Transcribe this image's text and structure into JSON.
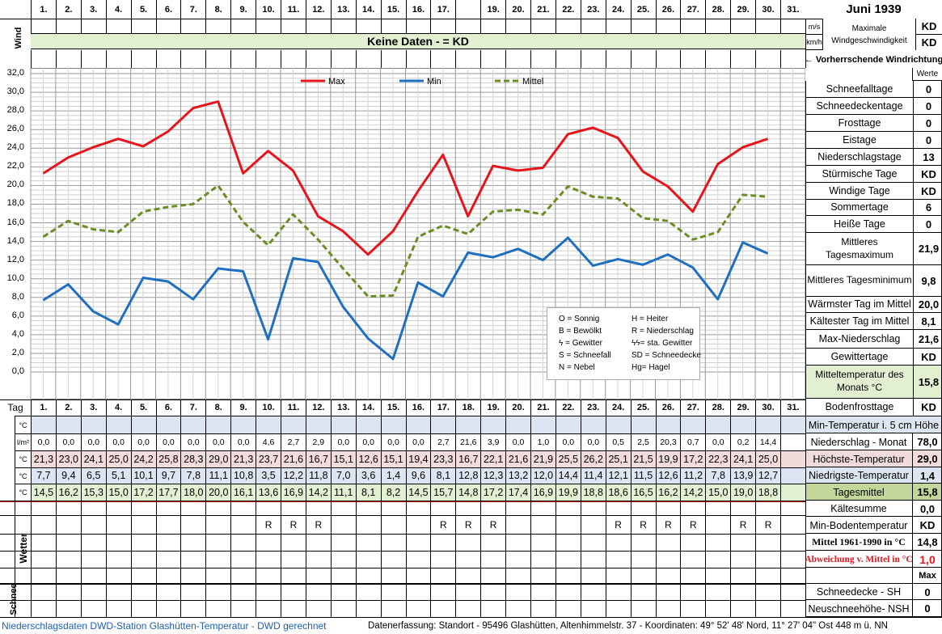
{
  "header": {
    "title": "Juni 1939",
    "wind_label": "Wind",
    "unit_ms": "m/s",
    "unit_kmh": "km/h",
    "max_wind_label": "Maximale Windgeschwindigkeit",
    "max_wind_ms": "KD",
    "max_wind_kmh": "KD",
    "no_data_banner": "Keine Daten -  = KD",
    "direction_label": "← Vorherrschende Windrichtung",
    "werte_label": "Werte"
  },
  "days": [
    "1.",
    "2.",
    "3.",
    "4.",
    "5.",
    "6.",
    "7.",
    "8.",
    "9.",
    "10.",
    "11.",
    "12.",
    "13.",
    "14.",
    "15.",
    "16.",
    "17.",
    "",
    "19.",
    "20.",
    "21.",
    "22.",
    "23.",
    "24.",
    "25.",
    "26.",
    "27.",
    "28.",
    "29.",
    "30.",
    "31."
  ],
  "days_bottom": [
    "1.",
    "2.",
    "3.",
    "4.",
    "5.",
    "6.",
    "7.",
    "8.",
    "9.",
    "10.",
    "11.",
    "12.",
    "13.",
    "14.",
    "15.",
    "16.",
    "17.",
    "18.",
    "19.",
    "20.",
    "21.",
    "22.",
    "23.",
    "24.",
    "25.",
    "26.",
    "27.",
    "28.",
    "29.",
    "30.",
    "31."
  ],
  "tag_label": "Tag",
  "chart_data": {
    "type": "line",
    "x": [
      1,
      2,
      3,
      4,
      5,
      6,
      7,
      8,
      9,
      10,
      11,
      12,
      13,
      14,
      15,
      16,
      17,
      18,
      19,
      20,
      21,
      22,
      23,
      24,
      25,
      26,
      27,
      28,
      29,
      30
    ],
    "series": [
      {
        "name": "Max",
        "color": "#e8141b",
        "style": "solid",
        "values": [
          21.3,
          23.0,
          24.1,
          25.0,
          24.2,
          25.8,
          28.3,
          29.0,
          21.3,
          23.7,
          21.6,
          16.7,
          15.1,
          12.6,
          15.1,
          19.4,
          23.3,
          16.7,
          22.1,
          21.6,
          21.9,
          25.5,
          26.2,
          25.1,
          21.5,
          19.9,
          17.2,
          22.3,
          24.1,
          25.0
        ]
      },
      {
        "name": "Min",
        "color": "#1f6fc0",
        "style": "solid",
        "values": [
          7.7,
          9.4,
          6.5,
          5.1,
          10.1,
          9.7,
          7.8,
          11.1,
          10.8,
          3.5,
          12.2,
          11.8,
          7.0,
          3.6,
          1.4,
          9.6,
          8.1,
          12.8,
          12.3,
          13.2,
          12.0,
          14.4,
          11.4,
          12.1,
          11.5,
          12.6,
          11.2,
          7.8,
          13.9,
          12.7
        ]
      },
      {
        "name": "Mittel",
        "color": "#6b8e23",
        "style": "dashed",
        "values": [
          14.5,
          16.2,
          15.3,
          15.0,
          17.2,
          17.7,
          18.0,
          20.0,
          16.1,
          13.6,
          16.9,
          14.2,
          11.1,
          8.1,
          8.2,
          14.5,
          15.7,
          14.8,
          17.2,
          17.4,
          16.9,
          19.9,
          18.8,
          18.6,
          16.5,
          16.2,
          14.2,
          15.0,
          19.0,
          18.8
        ]
      }
    ],
    "ylim": [
      0,
      32
    ],
    "yticks": [
      "0,0",
      "2,0",
      "4,0",
      "6,0",
      "8,0",
      "10,0",
      "12,0",
      "14,0",
      "16,0",
      "18,0",
      "20,0",
      "22,0",
      "24,0",
      "26,0",
      "28,0",
      "30,0",
      "32,0"
    ],
    "grid": true,
    "legend_position": "top"
  },
  "weather_legend": [
    [
      "O = Sonnig",
      "H = Heiter"
    ],
    [
      "B = Bewölkt",
      "R = Niederschlag"
    ],
    [
      "ϟ = Gewitter",
      "ϟϟ= sta. Gewitter"
    ],
    [
      "S = Schneefall",
      "SD = Schneedecke"
    ],
    [
      "N = Nebel",
      "Hg= Hagel"
    ]
  ],
  "rows": {
    "unit_c": "°C",
    "unit_lm": "l/m²",
    "precip": [
      "0,0",
      "0,0",
      "0,0",
      "0,0",
      "0,0",
      "0,0",
      "0,0",
      "0,0",
      "0,0",
      "4,6",
      "2,7",
      "2,9",
      "0,0",
      "0,0",
      "0,0",
      "0,0",
      "2,7",
      "21,6",
      "3,9",
      "0,0",
      "1,0",
      "0,0",
      "0,0",
      "0,5",
      "2,5",
      "20,3",
      "0,7",
      "0,0",
      "0,2",
      "14,4"
    ],
    "max": [
      "21,3",
      "23,0",
      "24,1",
      "25,0",
      "24,2",
      "25,8",
      "28,3",
      "29,0",
      "21,3",
      "23,7",
      "21,6",
      "16,7",
      "15,1",
      "12,6",
      "15,1",
      "19,4",
      "23,3",
      "16,7",
      "22,1",
      "21,6",
      "21,9",
      "25,5",
      "26,2",
      "25,1",
      "21,5",
      "19,9",
      "17,2",
      "22,3",
      "24,1",
      "25,0"
    ],
    "min": [
      "7,7",
      "9,4",
      "6,5",
      "5,1",
      "10,1",
      "9,7",
      "7,8",
      "11,1",
      "10,8",
      "3,5",
      "12,2",
      "11,8",
      "7,0",
      "3,6",
      "1,4",
      "9,6",
      "8,1",
      "12,8",
      "12,3",
      "13,2",
      "12,0",
      "14,4",
      "11,4",
      "12,1",
      "11,5",
      "12,6",
      "11,2",
      "7,8",
      "13,9",
      "12,7"
    ],
    "mean": [
      "14,5",
      "16,2",
      "15,3",
      "15,0",
      "17,2",
      "17,7",
      "18,0",
      "20,0",
      "16,1",
      "13,6",
      "16,9",
      "14,2",
      "11,1",
      "8,1",
      "8,2",
      "14,5",
      "15,7",
      "14,8",
      "17,2",
      "17,4",
      "16,9",
      "19,9",
      "18,8",
      "18,6",
      "16,5",
      "16,2",
      "14,2",
      "15,0",
      "19,0",
      "18,8"
    ],
    "weather": [
      "",
      "",
      "",
      "",
      "",
      "",
      "",
      "",
      "",
      "R",
      "R",
      "R",
      "",
      "",
      "",
      "",
      "R",
      "R",
      "R",
      "",
      "",
      "",
      "",
      "R",
      "R",
      "R",
      "R",
      "",
      "R",
      "R"
    ],
    "weather_label": "Wetter",
    "schnee_label": "Schnee"
  },
  "stats": [
    {
      "label": "Schneefalltage",
      "value": "0"
    },
    {
      "label": "Schneedeckentage",
      "value": "0"
    },
    {
      "label": "Frosttage",
      "value": "0"
    },
    {
      "label": "Eistage",
      "value": "0"
    },
    {
      "label": "Niederschlagstage",
      "value": "13"
    },
    {
      "label": "Stürmische Tage",
      "value": "KD"
    },
    {
      "label": "Windige Tage",
      "value": "KD"
    },
    {
      "label": "Sommertage",
      "value": "6"
    },
    {
      "label": "Heiße Tage",
      "value": "0"
    },
    {
      "label": "Mittleres Tagesmaximum",
      "value": "21,9"
    },
    {
      "label": "Mittleres Tagesminimum",
      "value": "9,8"
    },
    {
      "label": "Wärmster Tag im Mittel",
      "value": "20,0"
    },
    {
      "label": "Kältester Tag im Mittel",
      "value": "8,1"
    },
    {
      "label": "Max-Niederschlag",
      "value": "21,6"
    },
    {
      "label": "Gewittertage",
      "value": "KD"
    },
    {
      "label": "Mitteltemperatur des Monats °C",
      "value": "15,8"
    },
    {
      "label": "Bodenfrosttage",
      "value": "KD"
    }
  ],
  "lower_stats": {
    "min_temp_5cm": "Min-Temperatur i. 5 cm Höhe",
    "precip_month_label": "Niederschlag - Monat",
    "precip_month_value": "78,0",
    "max_temp_label": "Höchste-Temperatur",
    "max_temp_value": "29,0",
    "min_temp_label": "Niedrigste-Temperatur",
    "min_temp_value": "1,4",
    "mean_label": "Tagesmittel",
    "mean_value": "15,8",
    "cold_sum_label": "Kältesumme",
    "cold_sum_value": "0,0",
    "min_ground_label": "Min-Bodentemperatur",
    "min_ground_value": "KD",
    "mean_6190_label": "Mittel 1961-1990 in °C",
    "mean_6190_value": "14,8",
    "deviation_label": "Abweichung v. Mittel in °C",
    "deviation_value": "1,0",
    "max_label": "Max",
    "sh_label": "Schneedecke -   SH",
    "sh_value": "0",
    "nsh_label": "Neuschneehöhe- NSH",
    "nsh_value": "0"
  },
  "footer": {
    "left": "Niederschlagsdaten DWD-Station Glashütten-Temperatur -  DWD gerechnet",
    "right": "Datenerfassung:  Standort -  95496  Glashütten, Altenhimmelstr. 37 - Koordinaten:  49° 52' 48' Nord,   11° 27' 04\" Ost  448 m ü. NN"
  }
}
